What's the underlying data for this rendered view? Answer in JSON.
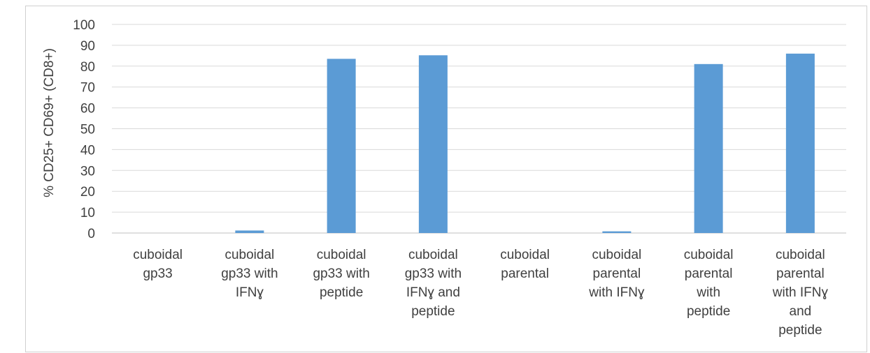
{
  "chart_data": {
    "type": "bar",
    "title": "",
    "xlabel": "",
    "ylabel": "% CD25+ CD69+ (CD8+)",
    "ylim": [
      0,
      100
    ],
    "yticks": [
      0,
      10,
      20,
      30,
      40,
      50,
      60,
      70,
      80,
      90,
      100
    ],
    "grid": true,
    "bar_color": "#5b9bd5",
    "categories": [
      [
        "cuboidal",
        "gp33"
      ],
      [
        "cuboidal",
        "gp33 with",
        "IFNɣ"
      ],
      [
        "cuboidal",
        "gp33 with",
        "peptide"
      ],
      [
        "cuboidal",
        "gp33 with",
        "IFNɣ and",
        "peptide"
      ],
      [
        "cuboidal",
        "parental"
      ],
      [
        "cuboidal",
        "parental",
        "with IFNɣ"
      ],
      [
        "cuboidal",
        "parental",
        "with",
        "peptide"
      ],
      [
        "cuboidal",
        "parental",
        "with IFNɣ",
        "and",
        "peptide"
      ]
    ],
    "values": [
      0,
      1.2,
      83.5,
      85.2,
      0,
      0.8,
      81,
      86
    ]
  }
}
